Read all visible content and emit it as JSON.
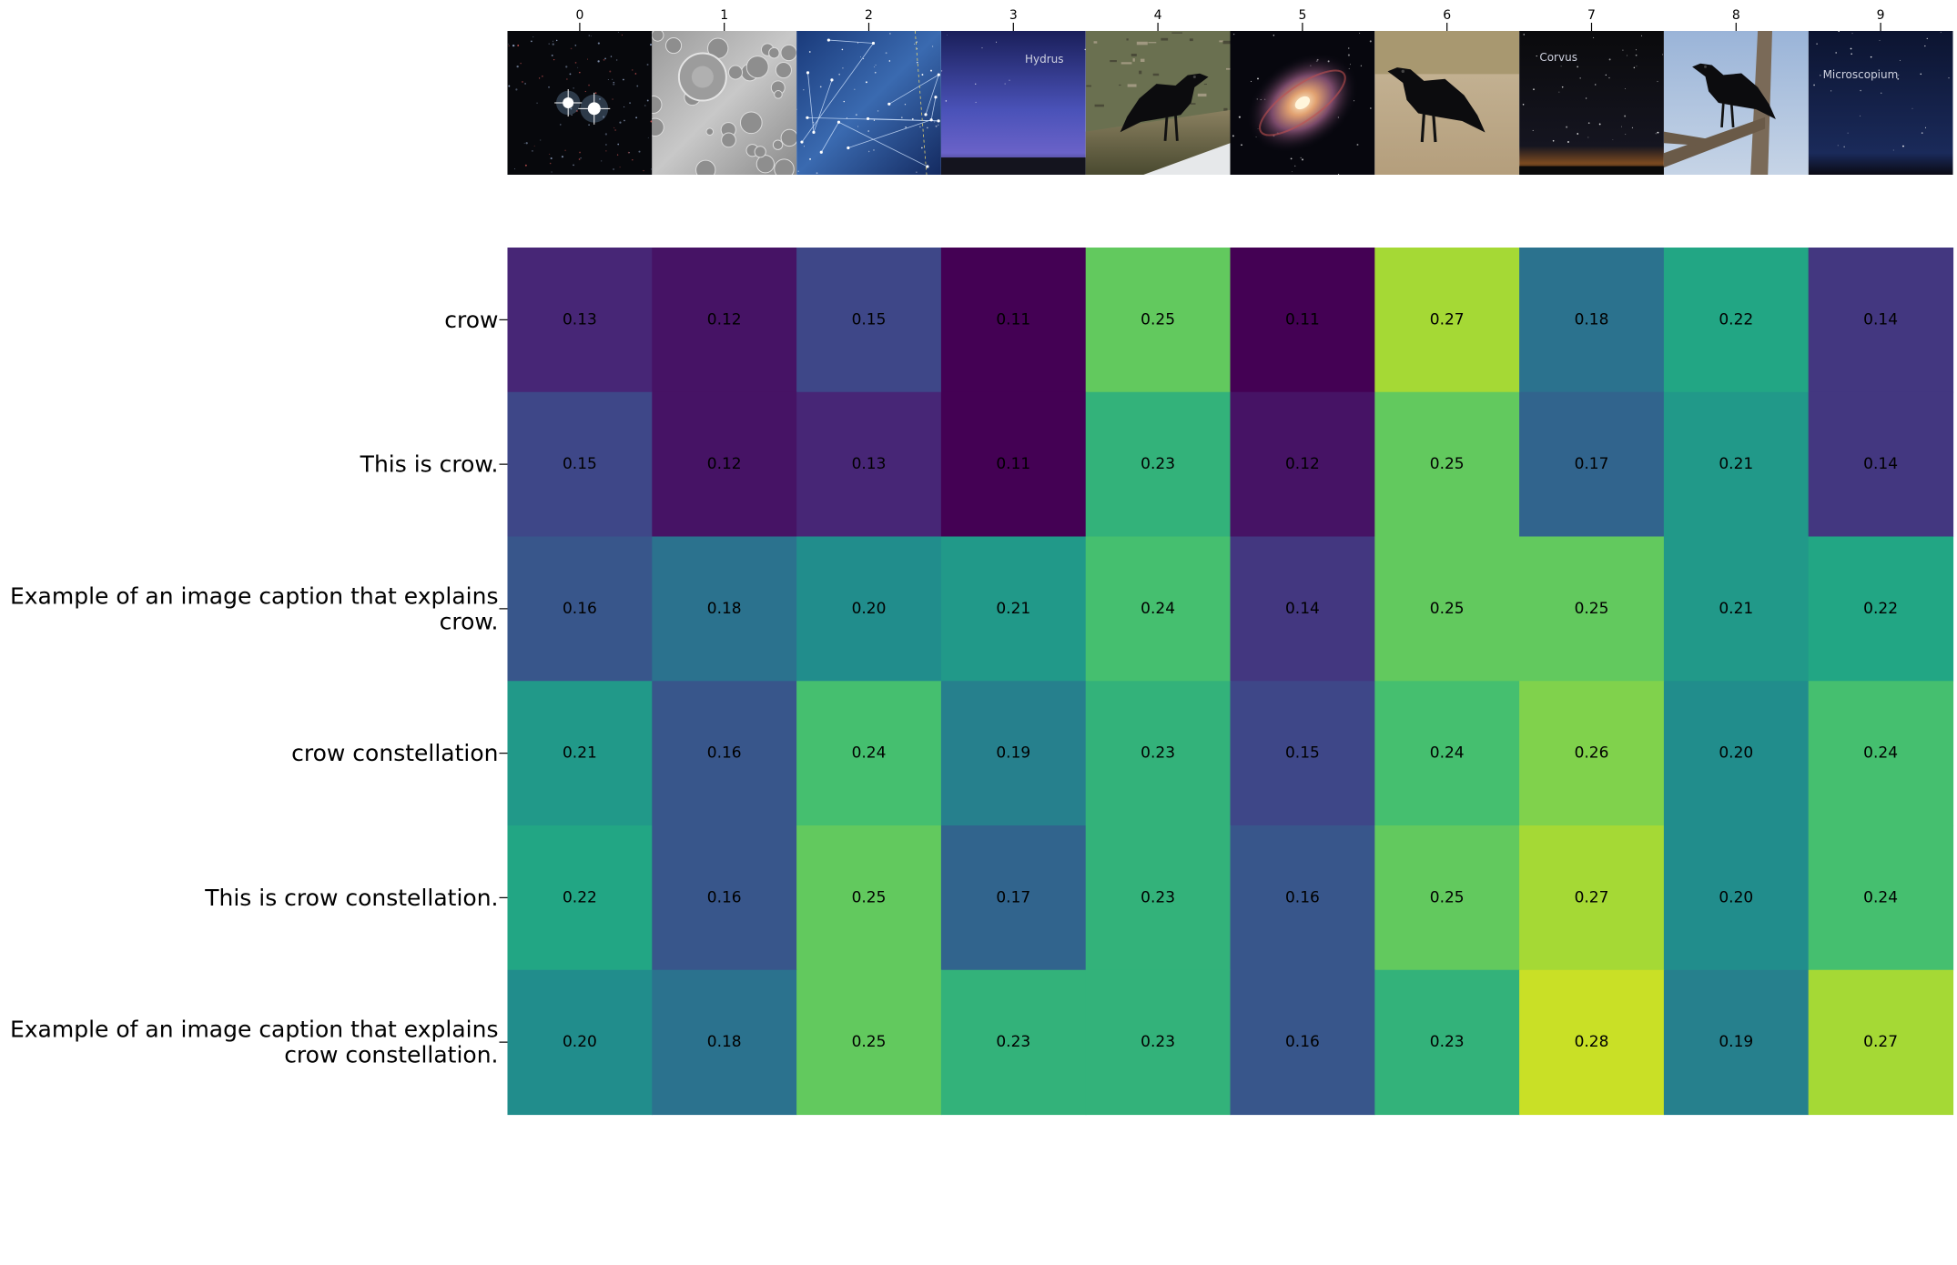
{
  "chart_data": {
    "type": "heatmap",
    "title": "",
    "xlabel": "",
    "ylabel": "",
    "x_tick_labels": [
      "0",
      "1",
      "2",
      "3",
      "4",
      "5",
      "6",
      "7",
      "8",
      "9"
    ],
    "y_tick_labels": [
      "crow",
      "This is crow.",
      "Example of an image caption that explains crow.",
      "crow constellation",
      "This is crow constellation.",
      "Example of an image caption that explains crow constellation."
    ],
    "y_tick_lines": [
      [
        "crow"
      ],
      [
        "This is crow."
      ],
      [
        "Example of an image caption that explains",
        "crow."
      ],
      [
        "crow constellation"
      ],
      [
        "This is crow constellation."
      ],
      [
        "Example of an image caption that explains",
        "crow constellation."
      ]
    ],
    "values": [
      [
        0.13,
        0.12,
        0.15,
        0.11,
        0.25,
        0.11,
        0.27,
        0.18,
        0.22,
        0.14
      ],
      [
        0.15,
        0.12,
        0.13,
        0.11,
        0.23,
        0.12,
        0.25,
        0.17,
        0.21,
        0.14
      ],
      [
        0.16,
        0.18,
        0.2,
        0.21,
        0.24,
        0.14,
        0.25,
        0.25,
        0.21,
        0.22
      ],
      [
        0.21,
        0.16,
        0.24,
        0.19,
        0.23,
        0.15,
        0.24,
        0.26,
        0.2,
        0.24
      ],
      [
        0.22,
        0.16,
        0.25,
        0.17,
        0.23,
        0.16,
        0.25,
        0.27,
        0.2,
        0.24
      ],
      [
        0.2,
        0.18,
        0.25,
        0.23,
        0.23,
        0.16,
        0.23,
        0.28,
        0.19,
        0.27
      ]
    ],
    "value_format": "0.00",
    "colormap": "viridis",
    "vmin": 0.11,
    "vmax": 0.295,
    "thumbnails": [
      {
        "scene": "star-pair",
        "caption": ""
      },
      {
        "scene": "moon-craters",
        "caption": ""
      },
      {
        "scene": "star-chart",
        "caption": ""
      },
      {
        "scene": "twilight-sky",
        "caption": "Hydrus"
      },
      {
        "scene": "crow-on-log",
        "caption": ""
      },
      {
        "scene": "spiral-galaxy",
        "caption": ""
      },
      {
        "scene": "crow-on-ground",
        "caption": ""
      },
      {
        "scene": "night-sky",
        "caption": "Corvus"
      },
      {
        "scene": "crow-on-branch",
        "caption": ""
      },
      {
        "scene": "deep-sky",
        "caption": "Microscopium"
      }
    ]
  }
}
